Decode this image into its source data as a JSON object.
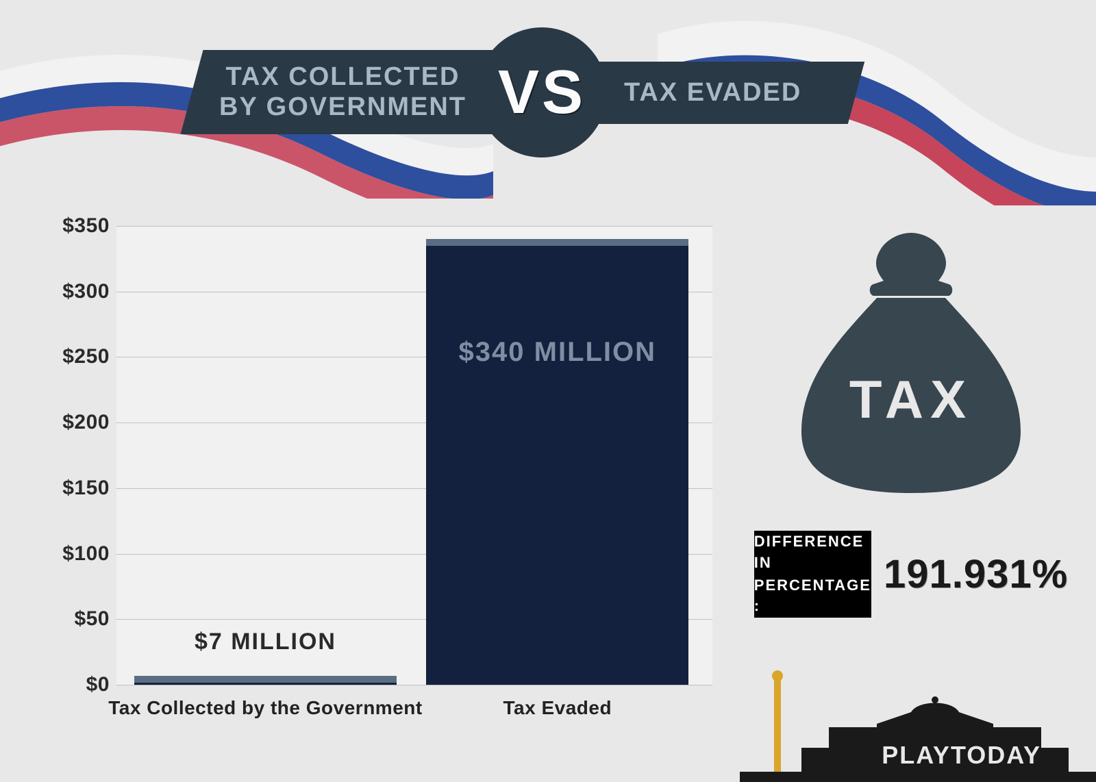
{
  "title": {
    "left": "TAX COLLECTED\nBY GOVERNMENT",
    "vs": "VS",
    "right": "TAX EVADED"
  },
  "chart": {
    "type": "bar",
    "ylim": [
      0,
      350
    ],
    "ytick_step": 50,
    "ytick_prefix": "$",
    "yticks": [
      "$0",
      "$50",
      "$100",
      "$150",
      "$200",
      "$250",
      "$300",
      "$350"
    ],
    "background_color": "#f1f1f1",
    "grid_color": "#c0c0c0",
    "bars": [
      {
        "label": "Tax Collected by the Government",
        "value": 7,
        "value_label": "$7 MILLION",
        "color": "#15213f",
        "top_color": "#5a6d82",
        "left_pct": 3,
        "width_pct": 44,
        "value_label_position": "above",
        "value_label_color": "#2a2a2a",
        "value_label_fontsize": 34
      },
      {
        "label": "Tax Evaded",
        "value": 340,
        "value_label": "$340 MILLION",
        "color": "#13213f",
        "top_color": "#5a6d82",
        "left_pct": 52,
        "width_pct": 44,
        "value_label_position": "inside",
        "value_label_color": "#7e8fa3",
        "value_label_fontsize": 40
      }
    ],
    "tick_fontsize": 30,
    "tick_color": "#2a2a2a",
    "xlabel_fontsize": 28,
    "xlabel_color": "#222222"
  },
  "bag": {
    "text": "TAX",
    "fill": "#37464f",
    "text_color": "#e8e8e8"
  },
  "difference": {
    "label_line1": "DIFFERENCE IN",
    "label_line2": "PERCENTAGE :",
    "value": "191.931%",
    "label_bg": "#000000",
    "label_fg": "#ffffff",
    "value_color": "#1a1a1a"
  },
  "flag_colors": {
    "white": "#f2f2f2",
    "blue": "#2e4f9e",
    "red": "#c6455b"
  },
  "logo": {
    "text": "PLAYTODAY",
    "silhouette_color": "#1a1a1a",
    "column_color": "#d9a52b"
  }
}
